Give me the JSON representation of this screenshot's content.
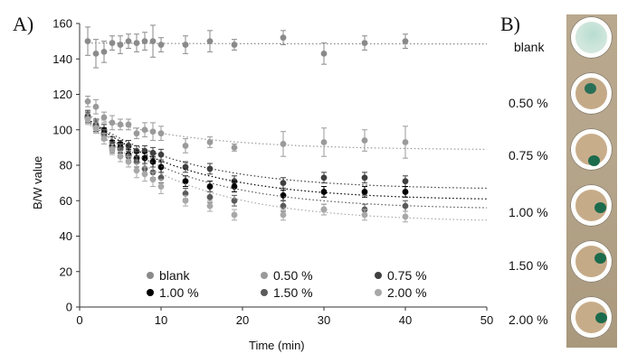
{
  "panels": {
    "a_label": "A)",
    "b_label": "B)"
  },
  "chart_data": {
    "type": "scatter",
    "xlabel": "Time (min)",
    "ylabel": "B/W value",
    "xlim": [
      0,
      50
    ],
    "ylim": [
      0,
      160
    ],
    "xticks": [
      "0",
      "10",
      "20",
      "30",
      "40",
      "50"
    ],
    "yticks": [
      "0",
      "20",
      "40",
      "60",
      "80",
      "100",
      "120",
      "140",
      "160"
    ],
    "grid": false,
    "legend_position": "bottom-inside",
    "series": [
      {
        "name": "blank",
        "color": "#8a8a8a",
        "x": [
          1,
          2,
          3,
          4,
          5,
          6,
          7,
          8,
          9,
          10,
          13,
          16,
          19,
          25,
          30,
          35,
          40
        ],
        "y": [
          150,
          143,
          144,
          149,
          148,
          150,
          149,
          150,
          150,
          148,
          148,
          150,
          148,
          152,
          143,
          149,
          150
        ],
        "err": [
          8,
          8,
          6,
          4,
          5,
          4,
          5,
          5,
          9,
          4,
          5,
          6,
          3,
          4,
          6,
          4,
          4
        ],
        "fit": [
          149,
          148.5
        ]
      },
      {
        "name": "0.50 %",
        "color": "#9a9a9a",
        "x": [
          1,
          2,
          3,
          4,
          5,
          6,
          7,
          8,
          9,
          10,
          13,
          16,
          19,
          25,
          30,
          35,
          40
        ],
        "y": [
          116,
          113,
          107,
          104,
          103,
          103,
          98,
          100,
          99,
          98,
          91,
          93,
          90,
          92,
          93,
          94,
          93
        ],
        "err": [
          3,
          4,
          3,
          4,
          3,
          3,
          3,
          4,
          5,
          4,
          4,
          3,
          2,
          7,
          8,
          6,
          9
        ],
        "fit": [
          108,
          89
        ]
      },
      {
        "name": "0.75 %",
        "color": "#3f3f3f",
        "x": [
          1,
          2,
          3,
          4,
          5,
          6,
          7,
          8,
          9,
          10,
          13,
          16,
          19,
          25,
          30,
          35,
          40
        ],
        "y": [
          108,
          103,
          100,
          93,
          92,
          91,
          88,
          88,
          87,
          86,
          79,
          78,
          71,
          70,
          73,
          73,
          71
        ],
        "err": [
          3,
          3,
          3,
          3,
          2,
          3,
          3,
          3,
          3,
          3,
          3,
          3,
          3,
          3,
          3,
          3,
          3
        ],
        "fit": [
          106,
          67
        ]
      },
      {
        "name": "1.00 %",
        "color": "#000000",
        "x": [
          1,
          2,
          3,
          4,
          5,
          6,
          7,
          8,
          9,
          10,
          13,
          16,
          19,
          25,
          30,
          35,
          40
        ],
        "y": [
          107,
          102,
          98,
          91,
          90,
          86,
          84,
          84,
          82,
          79,
          71,
          68,
          68,
          63,
          65,
          65,
          65
        ],
        "err": [
          3,
          3,
          3,
          3,
          3,
          3,
          3,
          3,
          3,
          3,
          3,
          3,
          3,
          3,
          3,
          3,
          3
        ],
        "fit": [
          106,
          61
        ]
      },
      {
        "name": "1.50 %",
        "color": "#5a5a5a",
        "x": [
          1,
          2,
          3,
          4,
          5,
          6,
          7,
          8,
          9,
          10,
          13,
          16,
          19,
          25,
          30,
          35,
          40
        ],
        "y": [
          107,
          102,
          97,
          90,
          89,
          85,
          82,
          78,
          76,
          73,
          64,
          62,
          60,
          57,
          55,
          55,
          57
        ],
        "err": [
          3,
          3,
          3,
          3,
          3,
          3,
          3,
          3,
          3,
          3,
          3,
          3,
          3,
          3,
          3,
          3,
          3
        ],
        "fit": [
          105,
          56
        ]
      },
      {
        "name": "2.00 %",
        "color": "#a8a8a8",
        "x": [
          1,
          2,
          3,
          4,
          5,
          6,
          7,
          8,
          9,
          10,
          13,
          16,
          19,
          25,
          30,
          35,
          40
        ],
        "y": [
          106,
          101,
          95,
          89,
          85,
          82,
          77,
          75,
          72,
          68,
          60,
          57,
          52,
          52,
          55,
          52,
          51
        ],
        "err": [
          3,
          3,
          3,
          3,
          3,
          3,
          4,
          4,
          4,
          4,
          3,
          3,
          3,
          3,
          3,
          3,
          3
        ],
        "fit": [
          104,
          49
        ]
      }
    ]
  },
  "photo": {
    "concentrations": [
      "blank",
      "0.50 %",
      "0.75 %",
      "1.00 %",
      "1.50 %",
      "2.00 %"
    ]
  }
}
